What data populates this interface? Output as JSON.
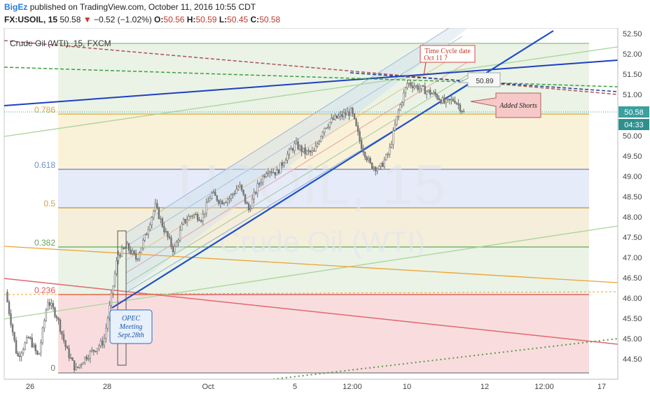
{
  "header": {
    "brand": "BigEz",
    "published": "published on TradingView.com, October 11, 2016 10:55 CDT",
    "symbol": "FX:USOIL, 15",
    "last": "50.58",
    "change_arrow": "▼",
    "change": "−0.52 (−1.02%)",
    "o_label": "O:",
    "o_value": "50.56",
    "h_label": "H:",
    "h_value": "50.59",
    "l_label": "L:",
    "l_value": "50.45",
    "c_label": "C:",
    "c_value": "50.58"
  },
  "chart_title": "Crude Oil (WTI), 15, FXCM",
  "watermark": {
    "line1": "USOIL, 15",
    "line2": "Crude Oil (WTI)"
  },
  "price_axis": {
    "ticks": [
      "52.50",
      "52.00",
      "51.50",
      "51.00",
      "50.50",
      "50.00",
      "49.50",
      "49.00",
      "48.50",
      "48.00",
      "47.50",
      "47.00",
      "46.50",
      "46.00",
      "45.50",
      "45.00",
      "44.50"
    ],
    "last_price": "50.58",
    "countdown": "04:33"
  },
  "time_axis": {
    "ticks": [
      "26",
      "28",
      "Oct",
      "5",
      "12:00",
      "10",
      "12",
      "12:00",
      "17"
    ]
  },
  "fib_labels": [
    "0.786",
    "0.618",
    "0.5",
    "0.382",
    "0.236",
    "0"
  ],
  "annotations": {
    "time_cycle_line1": "Time Cycle date",
    "time_cycle_line2": "Oct 11 ?",
    "price_callout": "50.89",
    "added_shorts": "Added Shorts",
    "opec_line1": "OPEC",
    "opec_line2": "Meeting",
    "opec_line3": "Sept.28th"
  },
  "colors": {
    "accent": "#2a7bd6",
    "down": "#c0392b",
    "candle": "#707070",
    "trend_blue": "#1f4fc9"
  },
  "chart_data": {
    "type": "candlestick",
    "title": "Crude Oil (WTI), 15, FXCM",
    "symbol": "FX:USOIL",
    "interval": "15",
    "ylim": [
      44.1,
      52.6
    ],
    "y_ticks": [
      52.5,
      52.0,
      51.5,
      51.0,
      50.5,
      50.0,
      49.5,
      49.0,
      48.5,
      48.0,
      47.5,
      47.0,
      46.5,
      46.0,
      45.5,
      45.0,
      44.5
    ],
    "x_tick_labels": [
      "26",
      "28",
      "Oct",
      "5",
      "12:00",
      "10",
      "12",
      "12:00",
      "17"
    ],
    "last_price": 50.58,
    "fibonacci_retracement": [
      {
        "level": "0.786",
        "price": 50.67
      },
      {
        "level": "0.618",
        "price": 49.18
      },
      {
        "level": "0.5",
        "price": 48.23
      },
      {
        "level": "0.382",
        "price": 47.28
      },
      {
        "level": "0.236",
        "price": 46.12
      },
      {
        "level": "0",
        "price": 44.22
      },
      {
        "level": "1",
        "price": 52.26
      }
    ],
    "price_path_approx": [
      [
        0,
        46.2
      ],
      [
        0.5,
        44.6
      ],
      [
        1.0,
        45.1
      ],
      [
        1.4,
        44.6
      ],
      [
        1.8,
        46.0
      ],
      [
        2.2,
        45.6
      ],
      [
        2.6,
        44.8
      ],
      [
        3.0,
        44.3
      ],
      [
        3.4,
        44.6
      ],
      [
        3.8,
        44.8
      ],
      [
        4.2,
        45.0
      ],
      [
        4.5,
        46.0
      ],
      [
        4.8,
        47.1
      ],
      [
        5.2,
        47.3
      ],
      [
        5.6,
        47.0
      ],
      [
        6.0,
        47.6
      ],
      [
        6.4,
        48.3
      ],
      [
        6.8,
        47.7
      ],
      [
        7.2,
        47.2
      ],
      [
        7.6,
        47.9
      ],
      [
        8.0,
        48.1
      ],
      [
        8.4,
        48.0
      ],
      [
        8.8,
        48.6
      ],
      [
        9.2,
        48.4
      ],
      [
        9.6,
        48.5
      ],
      [
        10.0,
        48.8
      ],
      [
        10.4,
        48.2
      ],
      [
        10.8,
        48.8
      ],
      [
        11.2,
        49.2
      ],
      [
        11.6,
        49.1
      ],
      [
        12.0,
        49.5
      ],
      [
        12.4,
        49.8
      ],
      [
        12.8,
        49.6
      ],
      [
        13.2,
        49.6
      ],
      [
        13.6,
        50.2
      ],
      [
        14.0,
        50.4
      ],
      [
        14.4,
        50.5
      ],
      [
        14.8,
        50.6
      ],
      [
        15.2,
        49.8
      ],
      [
        15.6,
        49.3
      ],
      [
        16.0,
        49.2
      ],
      [
        16.4,
        49.6
      ],
      [
        16.8,
        50.6
      ],
      [
        17.2,
        51.3
      ],
      [
        17.6,
        51.2
      ],
      [
        18.0,
        51.1
      ],
      [
        18.4,
        51.0
      ],
      [
        18.8,
        50.8
      ],
      [
        19.2,
        50.9
      ],
      [
        19.6,
        50.58
      ]
    ],
    "annotation_prices": {
      "callout": 50.89
    }
  }
}
